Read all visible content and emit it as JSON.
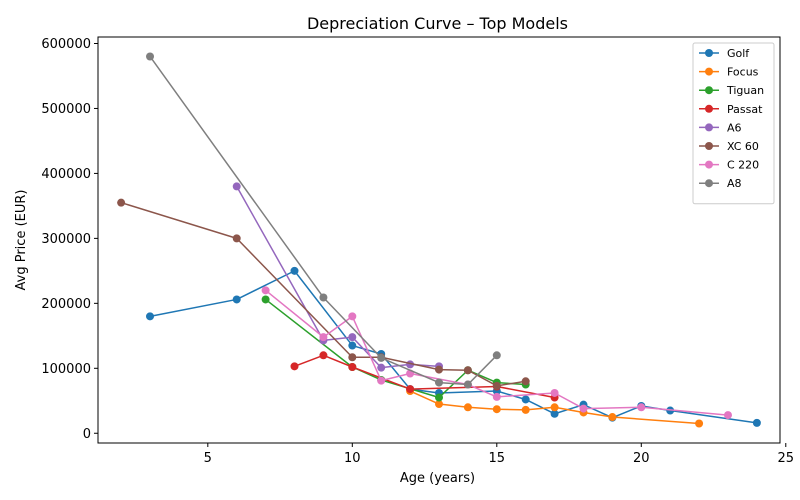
{
  "chart_data": {
    "type": "line",
    "title": "Depreciation Curve – Top Models",
    "xlabel": "Age (years)",
    "ylabel": "Avg Price (EUR)",
    "xlim": [
      1.2,
      24.8
    ],
    "ylim": [
      -15000,
      610000
    ],
    "xticks": [
      5,
      10,
      15,
      20,
      25
    ],
    "yticks": [
      0,
      100000,
      200000,
      300000,
      400000,
      500000,
      600000
    ],
    "xtick_labels": [
      "5",
      "10",
      "15",
      "20",
      "25"
    ],
    "ytick_labels": [
      "0",
      "100000",
      "200000",
      "300000",
      "400000",
      "500000",
      "600000"
    ],
    "grid": false,
    "legend_position": "top-right",
    "series": [
      {
        "name": "Golf",
        "color": "#1f77b4",
        "x": [
          3,
          6,
          8,
          10,
          11,
          12,
          13,
          15,
          16,
          17,
          18,
          19,
          20,
          21,
          24
        ],
        "y": [
          180000,
          206000,
          250000,
          135000,
          122000,
          68000,
          62000,
          65000,
          52000,
          30000,
          44000,
          24000,
          42000,
          35000,
          16000
        ]
      },
      {
        "name": "Focus",
        "color": "#ff7f0e",
        "x": [
          12,
          13,
          14,
          15,
          16,
          17,
          18,
          19,
          22
        ],
        "y": [
          65000,
          45000,
          40000,
          37000,
          36000,
          40000,
          32000,
          25000,
          15000
        ]
      },
      {
        "name": "Tiguan",
        "color": "#2ca02c",
        "x": [
          7,
          10,
          11,
          13,
          14,
          15,
          16
        ],
        "y": [
          206000,
          102000,
          82000,
          55000,
          97000,
          78000,
          75000
        ]
      },
      {
        "name": "Passat",
        "color": "#d62728",
        "x": [
          8,
          9,
          10,
          12,
          15,
          17
        ],
        "y": [
          103000,
          120000,
          102000,
          68000,
          72000,
          55000
        ]
      },
      {
        "name": "A6",
        "color": "#9467bd",
        "x": [
          6,
          9,
          10,
          11,
          12,
          13
        ],
        "y": [
          380000,
          143000,
          148000,
          101000,
          106000,
          103000
        ]
      },
      {
        "name": "XC 60",
        "color": "#8c564b",
        "x": [
          2,
          6,
          10,
          11,
          13,
          14,
          15,
          16
        ],
        "y": [
          355000,
          300000,
          117000,
          117000,
          98000,
          97000,
          73000,
          80000
        ]
      },
      {
        "name": "C 220",
        "color": "#e377c2",
        "x": [
          7,
          9,
          10,
          11,
          12,
          14,
          15,
          17,
          18,
          20,
          23
        ],
        "y": [
          220000,
          148000,
          180000,
          81000,
          92000,
          75000,
          56000,
          62000,
          38000,
          40000,
          28000
        ]
      },
      {
        "name": "A8",
        "color": "#7f7f7f",
        "x": [
          3,
          9,
          11,
          13,
          14,
          15
        ],
        "y": [
          580000,
          209000,
          116000,
          78000,
          75000,
          120000
        ]
      }
    ]
  }
}
